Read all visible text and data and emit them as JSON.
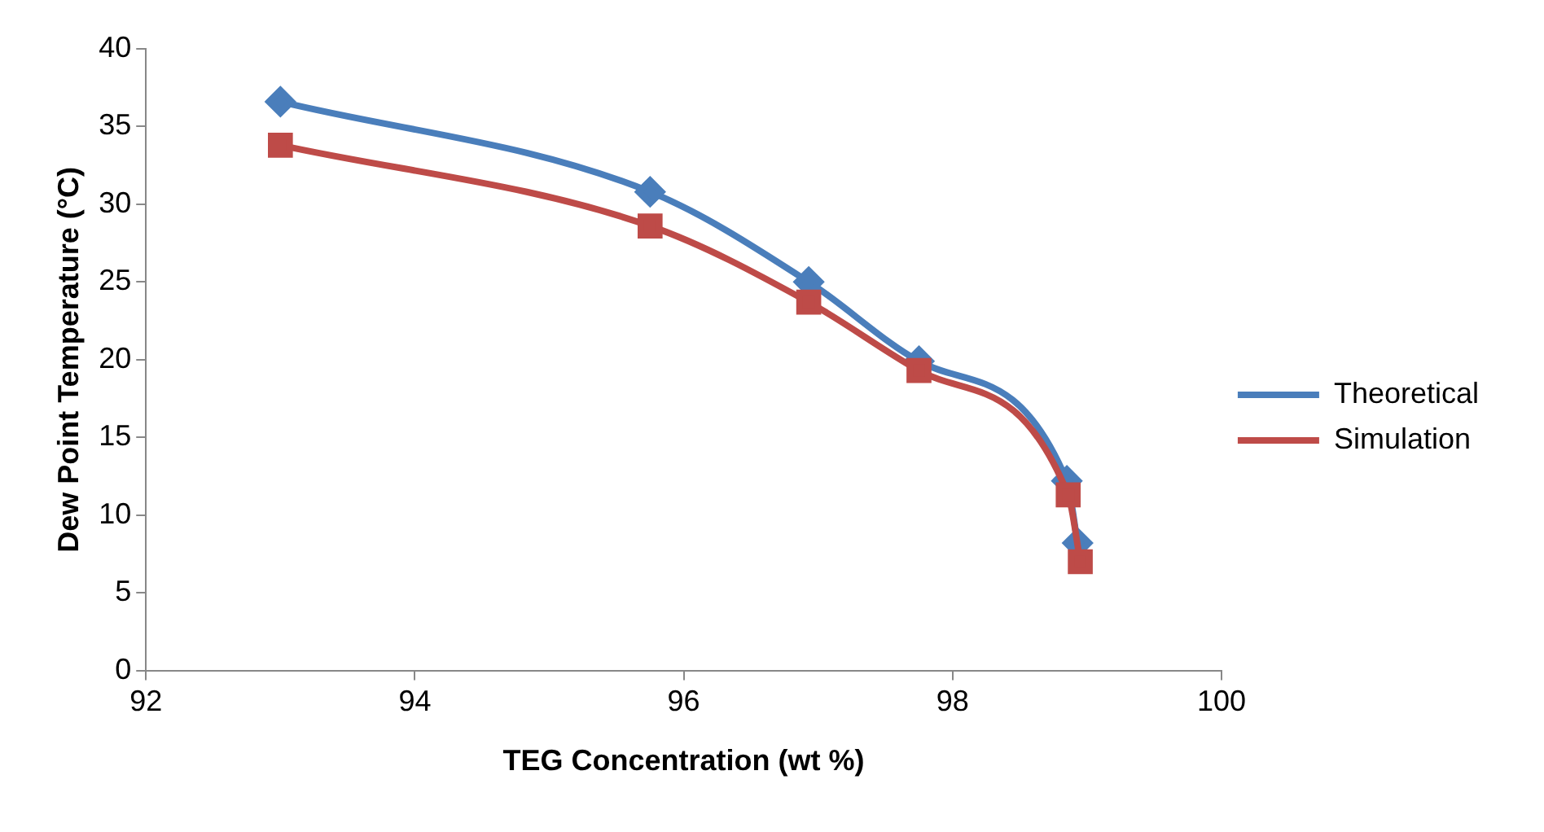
{
  "chart_data": {
    "type": "line",
    "xlabel": "TEG Concentration (wt %)",
    "ylabel": "Dew Point Temperature (°C)",
    "xlim": [
      92,
      100
    ],
    "xticks": [
      92,
      94,
      96,
      98,
      100
    ],
    "ylim": [
      0,
      40
    ],
    "yticks": [
      0,
      5,
      10,
      15,
      20,
      25,
      30,
      35,
      40
    ],
    "grid": false,
    "legend": "right",
    "series": [
      {
        "name": "Theoretical",
        "color": "#4a7ebb",
        "marker": "diamond",
        "x": [
          93.0,
          95.75,
          96.93,
          97.75,
          98.85,
          98.93
        ],
        "values": [
          36.6,
          30.8,
          25.0,
          19.9,
          12.2,
          8.2
        ]
      },
      {
        "name": "Simulation",
        "color": "#be4b48",
        "marker": "square",
        "x": [
          93.0,
          95.75,
          96.93,
          97.75,
          98.86,
          98.95
        ],
        "values": [
          33.8,
          28.6,
          23.7,
          19.3,
          11.3,
          7.0
        ]
      }
    ]
  }
}
